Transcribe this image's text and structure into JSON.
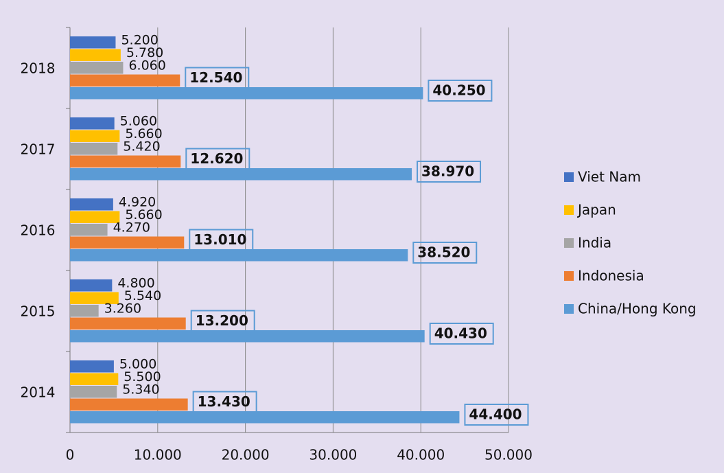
{
  "chart_data": {
    "type": "hbar",
    "categories": [
      "2014",
      "2015",
      "2016",
      "2017",
      "2018"
    ],
    "series": [
      {
        "name": "Viet Nam",
        "color": "#4472c4",
        "values": [
          5000,
          4800,
          4920,
          5060,
          5200
        ],
        "value_labels": [
          "5.000",
          "4.800",
          "4.920",
          "5.060",
          "5.200"
        ]
      },
      {
        "name": "Japan",
        "color": "#ffc000",
        "values": [
          5500,
          5540,
          5660,
          5660,
          5780
        ],
        "value_labels": [
          "5.500",
          "5.540",
          "5.660",
          "5.660",
          "5.780"
        ]
      },
      {
        "name": "India",
        "color": "#a5a5a5",
        "values": [
          5340,
          3260,
          4270,
          5420,
          6060
        ],
        "value_labels": [
          "5.340",
          "3.260",
          "4.270",
          "5.420",
          "6.060"
        ]
      },
      {
        "name": "Indonesia",
        "color": "#ed7d31",
        "values": [
          13430,
          13200,
          13010,
          12620,
          12540
        ],
        "value_labels": [
          "13.430",
          "13.200",
          "13.010",
          "12.620",
          "12.540"
        ]
      },
      {
        "name": "China/Hong Kong",
        "color": "#5b9bd5",
        "values": [
          44400,
          40430,
          38520,
          38970,
          40250
        ],
        "value_labels": [
          "44.400",
          "40.430",
          "38.520",
          "38.970",
          "40.250"
        ]
      }
    ],
    "xlim": [
      0,
      50000
    ],
    "xticks": [
      0,
      {
        "value": 10000,
        "label": "10.000"
      },
      {
        "value": 20000,
        "label": "20.000"
      },
      {
        "value": 30000,
        "label": "30.000"
      },
      {
        "value": 40000,
        "label": "40.000"
      },
      {
        "value": 50000,
        "label": "50.000"
      }
    ],
    "grid": true,
    "legend": "right"
  }
}
